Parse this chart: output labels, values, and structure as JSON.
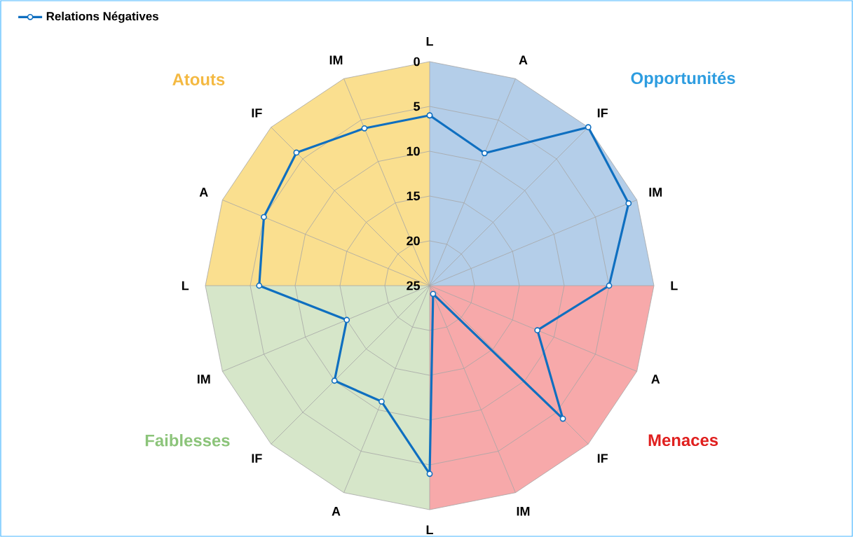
{
  "chart_data": {
    "type": "radar",
    "categories": [
      "L",
      "A",
      "IF",
      "IM",
      "L",
      "A",
      "IF",
      "IM",
      "L",
      "A",
      "IF",
      "IM",
      "L",
      "A",
      "IF",
      "IM"
    ],
    "series": [
      {
        "name": "Relations Négatives",
        "color": "#0f6fc0",
        "values": [
          6,
          9,
          0,
          1,
          5,
          12,
          4,
          24,
          4,
          11,
          10,
          15,
          6,
          5,
          4,
          6
        ]
      }
    ],
    "ylim": [
      25,
      0
    ],
    "yticks": [
      0,
      5,
      10,
      15,
      20,
      25
    ],
    "grid": true,
    "legend": "top left",
    "marker": "circle",
    "annotations": [
      "Atouts",
      "Opportunités",
      "Faiblesses",
      "Menaces"
    ]
  }
}
